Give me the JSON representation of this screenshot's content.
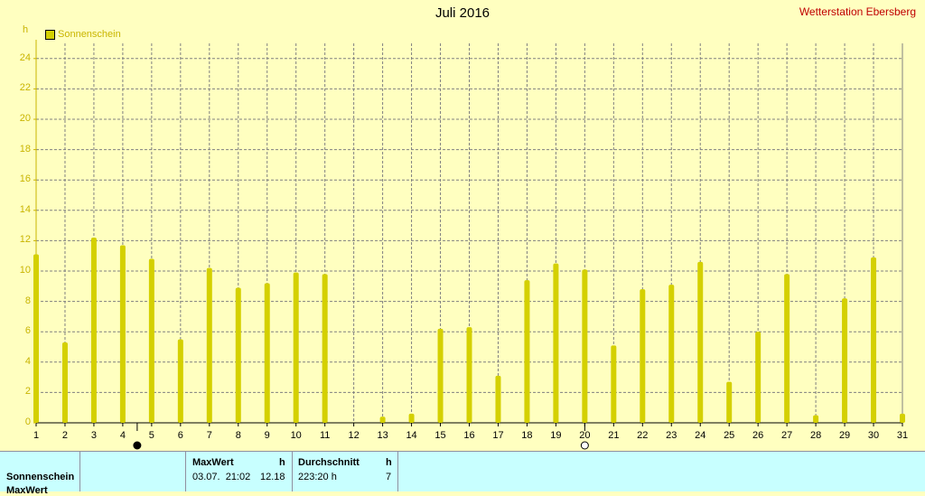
{
  "header": {
    "title": "Juli 2016",
    "station": "Wetterstation Ebersberg",
    "unit": "h"
  },
  "chart_data": {
    "type": "bar",
    "title": "Juli 2016",
    "ylabel": "h",
    "ylim": [
      0,
      25
    ],
    "yticks": [
      0,
      2,
      4,
      6,
      8,
      10,
      12,
      14,
      16,
      18,
      20,
      22,
      24
    ],
    "grid": true,
    "legend_position": "top-left",
    "categories": [
      "1",
      "2",
      "3",
      "4",
      "5",
      "6",
      "7",
      "8",
      "9",
      "10",
      "11",
      "12",
      "13",
      "14",
      "15",
      "16",
      "17",
      "18",
      "19",
      "20",
      "21",
      "22",
      "23",
      "24",
      "25",
      "26",
      "27",
      "28",
      "29",
      "30",
      "31"
    ],
    "series": [
      {
        "name": "Sonnenschein",
        "color": "#d4d000",
        "values": [
          11.1,
          5.3,
          12.2,
          11.7,
          10.8,
          5.5,
          10.2,
          8.9,
          9.2,
          9.9,
          9.8,
          0,
          0.4,
          0.6,
          6.2,
          6.3,
          3.1,
          9.4,
          10.5,
          10.1,
          5.1,
          8.8,
          9.1,
          10.6,
          2.7,
          6.0,
          9.8,
          0.5,
          8.2,
          10.9,
          0.6
        ]
      }
    ],
    "moon_markers": [
      {
        "day": 4.5,
        "phase": "new-moon"
      },
      {
        "day": 20,
        "phase": "full-moon"
      }
    ]
  },
  "stats": {
    "row_label": "Sonnenschein",
    "row_label_2": "MaxWert",
    "max_header": "MaxWert",
    "max_unit": "h",
    "max_date": "03.07.  21:02",
    "max_value": "12.18",
    "avg_header": "Durchschnitt",
    "avg_unit": "h",
    "avg_total": "223:20 h",
    "avg_value": "7"
  }
}
